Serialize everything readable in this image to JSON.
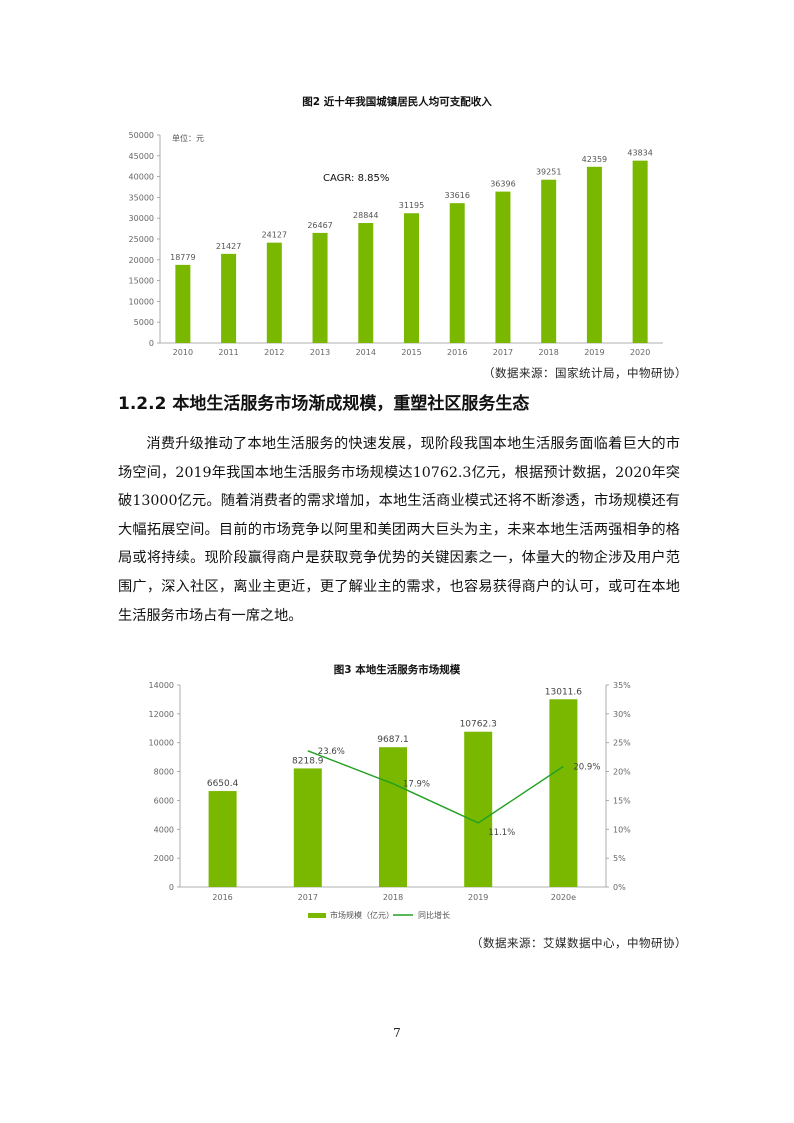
{
  "chart1": {
    "caption": "图2 近十年我国城镇居民人均可支配收入",
    "unit_label": "单位：元",
    "annotation": "CAGR: 8.85%",
    "source": "（数据来源：国家统计局，中物研协）",
    "colors": {
      "bar": "#7ab800"
    }
  },
  "chart2": {
    "caption": "图3 本地生活服务市场规模",
    "source": "（数据来源：艾媒数据中心，中物研协）",
    "colors": {
      "bar": "#7ab800",
      "line": "#22a022"
    }
  },
  "section": {
    "heading": "1.2.2 本地生活服务市场渐成规模，重塑社区服务生态",
    "paragraph": "消费升级推动了本地生活服务的快速发展，现阶段我国本地生活服务面临着巨大的市场空间，2019年我国本地生活服务市场规模达10762.3亿元，根据预计数据，2020年突破13000亿元。随着消费者的需求增加，本地生活商业模式还将不断渗透，市场规模还有大幅拓展空间。目前的市场竞争以阿里和美团两大巨头为主，未来本地生活两强相争的格局或将持续。现阶段赢得商户是获取竞争优势的关键因素之一，体量大的物企涉及用户范围广，深入社区，离业主更近，更了解业主的需求，也容易获得商户的认可，或可在本地生活服务市场占有一席之地。"
  },
  "page_number": "7",
  "chart_data": [
    {
      "type": "bar",
      "categories": [
        "2010",
        "2011",
        "2012",
        "2013",
        "2014",
        "2015",
        "2016",
        "2017",
        "2018",
        "2019",
        "2020"
      ],
      "values": [
        18779,
        21427,
        24127,
        26467,
        28844,
        31195,
        33616,
        36396,
        39251,
        42359,
        43834
      ],
      "ylim": [
        0,
        50000
      ],
      "yticks": [
        "0",
        "5000",
        "10000",
        "15000",
        "20000",
        "25000",
        "30000",
        "35000",
        "40000",
        "45000",
        "50000"
      ],
      "grid": false
    },
    {
      "type": "bar",
      "categories": [
        "2016",
        "2017",
        "2018",
        "2019",
        "2020e"
      ],
      "values": [
        6650.4,
        8218.9,
        9687.1,
        10762.3,
        13011.6
      ],
      "value_labels": [
        "6650.4",
        "8218.9",
        "9687.1",
        "10762.3",
        "13011.6"
      ],
      "ylim": [
        0,
        14000
      ],
      "yticks": [
        "0",
        "2000",
        "4000",
        "6000",
        "8000",
        "10000",
        "12000",
        "14000"
      ],
      "y2lim": [
        0,
        0.35
      ],
      "y2ticks": [
        "0%",
        "5%",
        "10%",
        "15%",
        "20%",
        "25%",
        "30%",
        "35%"
      ],
      "series": [
        {
          "name": "市场规模（亿元）",
          "type": "bar",
          "values": [
            6650.4,
            8218.9,
            9687.1,
            10762.3,
            13011.6
          ]
        },
        {
          "name": "同比增长",
          "type": "line",
          "axis": "right",
          "x": [
            "2017",
            "2018",
            "2019",
            "2020e"
          ],
          "values": [
            0.236,
            0.179,
            0.111,
            0.209
          ],
          "labels": [
            "23.6%",
            "17.9%",
            "11.1%",
            "20.9%"
          ]
        }
      ],
      "legend": "bottom",
      "grid": false
    }
  ]
}
